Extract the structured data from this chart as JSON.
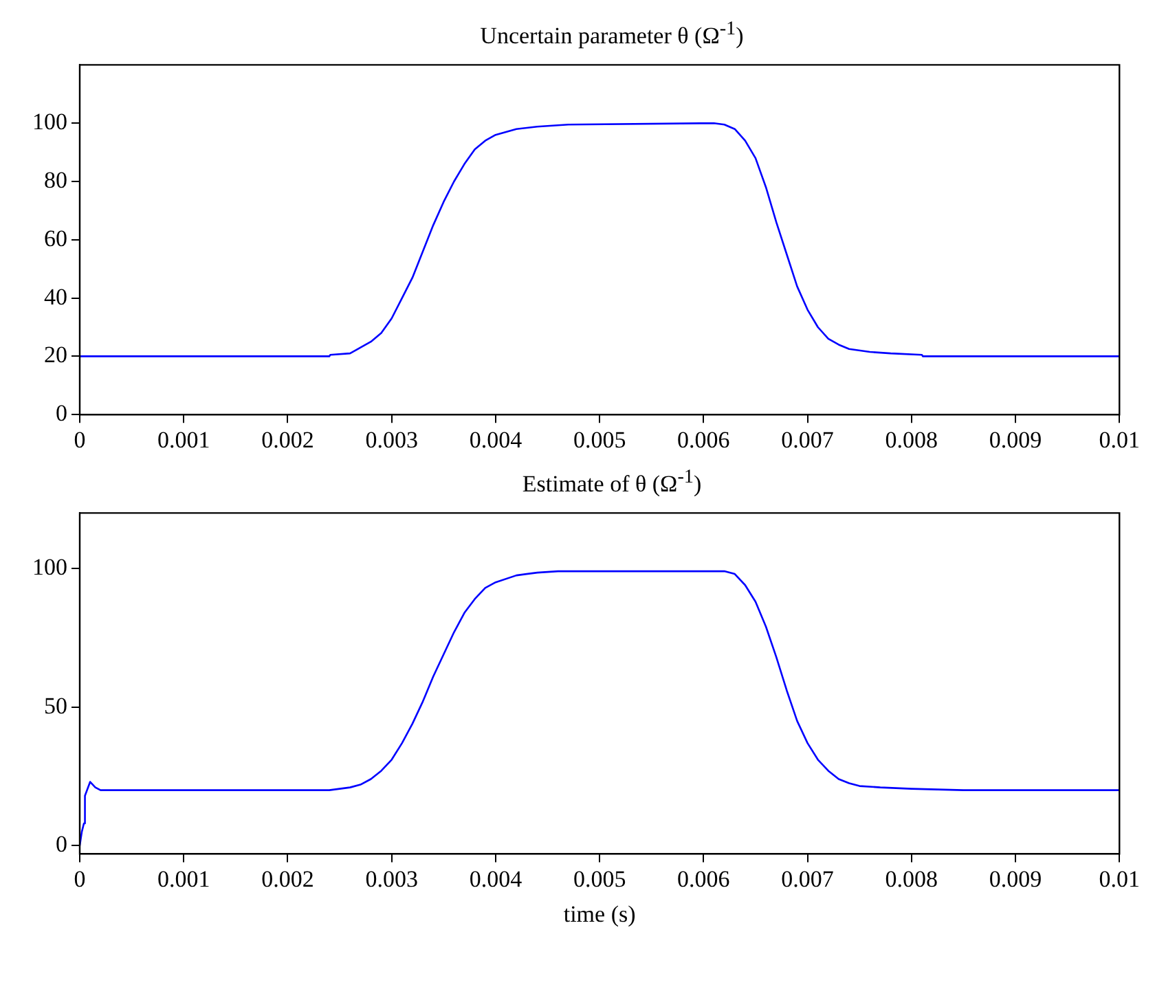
{
  "chart_data": [
    {
      "type": "line",
      "title": "Uncertain parameter θ (Ω$^{-1}$)",
      "xlim": [
        0,
        0.01
      ],
      "ylim": [
        0,
        120
      ],
      "xticks": [
        0,
        0.001,
        0.002,
        0.003,
        0.004,
        0.005,
        0.006,
        0.007,
        0.008,
        0.009,
        0.01
      ],
      "yticks": [
        0,
        20,
        40,
        60,
        80,
        100
      ],
      "grid": false,
      "legend": false,
      "marker": "none",
      "line_style": "solid",
      "series": [
        {
          "color": "#0000ff",
          "x": [
            0,
            0.0024,
            0.00241,
            0.0026,
            0.0027,
            0.0028,
            0.0029,
            0.003,
            0.0031,
            0.0032,
            0.0033,
            0.0034,
            0.0035,
            0.0036,
            0.0037,
            0.0038,
            0.0039,
            0.004,
            0.0042,
            0.0044,
            0.0047,
            0.0061,
            0.0062,
            0.0063,
            0.0064,
            0.0065,
            0.0066,
            0.0067,
            0.0068,
            0.0069,
            0.007,
            0.0071,
            0.0072,
            0.0073,
            0.0074,
            0.0076,
            0.0078,
            0.0081,
            0.00811,
            0.01
          ],
          "values": [
            20,
            20,
            20.5,
            21,
            23,
            25,
            28,
            33,
            40,
            47,
            56,
            65,
            73,
            80,
            86,
            91,
            94,
            96,
            98,
            98.8,
            99.5,
            100,
            99.5,
            98,
            94,
            88,
            78,
            66,
            55,
            44,
            36,
            30,
            26,
            24,
            22.5,
            21.5,
            21,
            20.5,
            20,
            20
          ]
        }
      ]
    },
    {
      "type": "line",
      "title": "Estimate of θ (Ω$^{-1}$)",
      "xlabel": "time (s)",
      "xlim": [
        0,
        0.01
      ],
      "ylim": [
        -3,
        120
      ],
      "xticks": [
        0,
        0.001,
        0.002,
        0.003,
        0.004,
        0.005,
        0.006,
        0.007,
        0.008,
        0.009,
        0.01
      ],
      "yticks": [
        0,
        50,
        100
      ],
      "grid": false,
      "legend": false,
      "marker": "none",
      "line_style": "solid",
      "series": [
        {
          "color": "#0000ff",
          "x": [
            0,
            2e-05,
            4e-05,
            5e-05,
            0.0001,
            0.00015,
            0.0002,
            0.0024,
            0.0026,
            0.0027,
            0.0028,
            0.0029,
            0.003,
            0.0031,
            0.0032,
            0.0033,
            0.0034,
            0.0035,
            0.0036,
            0.0037,
            0.0038,
            0.0039,
            0.004,
            0.0042,
            0.0044,
            0.0046,
            0.0062,
            0.0063,
            0.0064,
            0.0065,
            0.0066,
            0.0067,
            0.0068,
            0.0069,
            0.007,
            0.0071,
            0.0072,
            0.0073,
            0.0074,
            0.0075,
            0.0077,
            0.008,
            0.0085,
            0.01
          ],
          "values": [
            0,
            5,
            8,
            18,
            23,
            21,
            20,
            20,
            21,
            22,
            24,
            27,
            31,
            37,
            44,
            52,
            61,
            69,
            77,
            84,
            89,
            93,
            95,
            97.5,
            98.5,
            99,
            99,
            98,
            94,
            88,
            79,
            68,
            56,
            45,
            37,
            31,
            27,
            24,
            22.5,
            21.5,
            21,
            20.5,
            20,
            20
          ]
        }
      ]
    }
  ]
}
